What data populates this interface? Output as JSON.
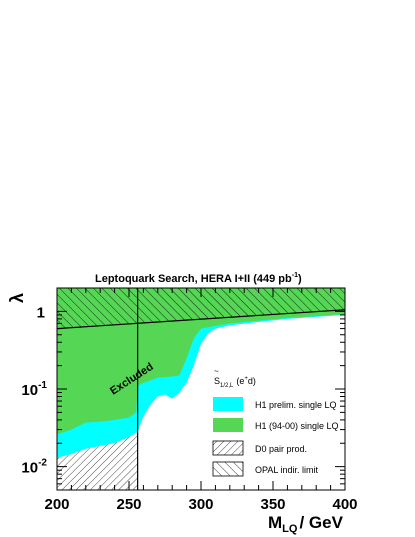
{
  "chart_data": {
    "type": "area",
    "title": "Leptoquark Search, HERA I+II (449 pb",
    "title_sup": "-1",
    "title_close": ")",
    "xlabel_main": "M",
    "xlabel_sub": "LQ",
    "xlabel_unit": "/ GeV",
    "ylabel": "λ",
    "x_ticks": [
      200,
      250,
      300,
      350,
      400
    ],
    "y_ticks": [
      {
        "value": 0.01,
        "base": "10",
        "exp": "-2"
      },
      {
        "value": 0.1,
        "base": "10",
        "exp": "-1"
      },
      {
        "value": 1,
        "base": "1",
        "exp": ""
      }
    ],
    "xlim": [
      200,
      400
    ],
    "ylim": [
      0.005,
      2.0
    ],
    "yscale": "log",
    "annotation": "Excluded",
    "legend": {
      "header_main": "S",
      "header_tilde": "~",
      "header_sub": "1/2,L",
      "header_tail": "(e",
      "header_sup": "+",
      "header_end": "d)",
      "entries": [
        {
          "label": "H1 prelim. single LQ",
          "style": "fill",
          "color": "#00ffff"
        },
        {
          "label": "H1 (94-00) single LQ",
          "style": "fill",
          "color": "#55d655"
        },
        {
          "label": "D0 pair prod.",
          "style": "hatch-back"
        },
        {
          "label": "OPAL indir. limit",
          "style": "hatch-forward"
        }
      ]
    },
    "series": [
      {
        "name": "H1 prelim. single LQ",
        "color": "#00ffff",
        "x": [
          200,
          210,
          220,
          230,
          240,
          250,
          256,
          260,
          265,
          270,
          275,
          280,
          285,
          290,
          295,
          300,
          305,
          310,
          320,
          340,
          360,
          380,
          400
        ],
        "y": [
          0.013,
          0.0145,
          0.017,
          0.0185,
          0.02,
          0.024,
          0.028,
          0.044,
          0.063,
          0.08,
          0.085,
          0.075,
          0.09,
          0.12,
          0.2,
          0.38,
          0.52,
          0.6,
          0.66,
          0.73,
          0.8,
          0.85,
          0.9
        ]
      },
      {
        "name": "H1 (94-00) single LQ",
        "color": "#55d655",
        "x": [
          200,
          210,
          220,
          230,
          240,
          250,
          255,
          256,
          260,
          270,
          280,
          285,
          290,
          295,
          300,
          310,
          320,
          340,
          360,
          380,
          400
        ],
        "y": [
          0.026,
          0.03,
          0.037,
          0.038,
          0.04,
          0.043,
          0.05,
          0.11,
          0.12,
          0.14,
          0.145,
          0.15,
          0.25,
          0.45,
          0.6,
          0.65,
          0.7,
          0.76,
          0.82,
          0.87,
          0.92
        ]
      },
      {
        "name": "D0 pair prod.",
        "style": "hatch-back",
        "x_max": 256
      },
      {
        "name": "OPAL indir. limit",
        "style": "hatch-forward",
        "x": [
          200,
          400
        ],
        "y": [
          0.6,
          1.05
        ]
      }
    ],
    "colors": {
      "cyan": "#00ffff",
      "green": "#55d655",
      "line": "#000000"
    }
  }
}
